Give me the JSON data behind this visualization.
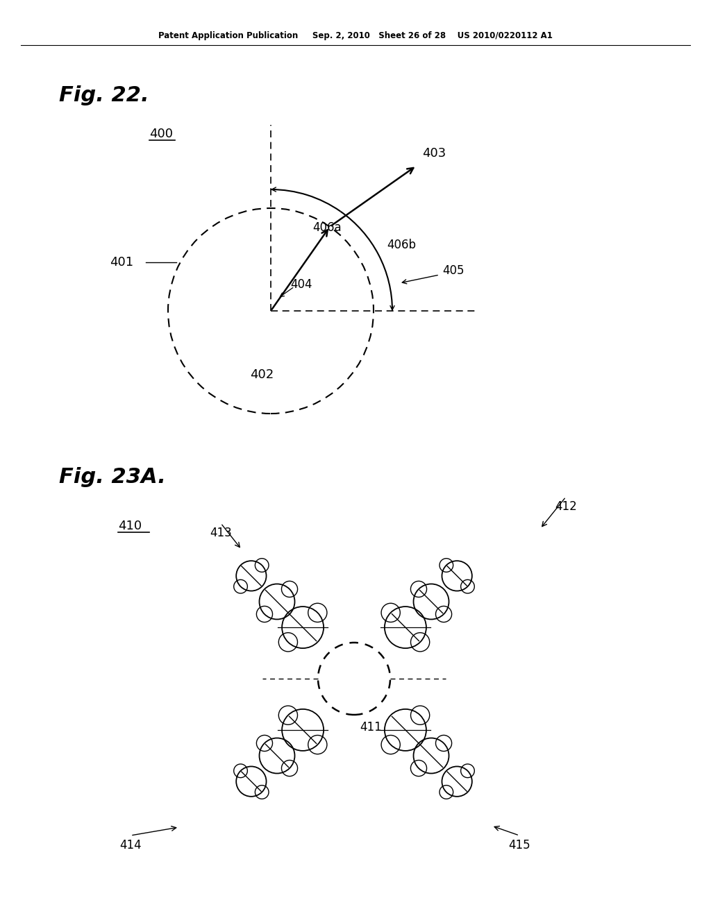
{
  "background_color": "#ffffff",
  "header_text": "Patent Application Publication     Sep. 2, 2010   Sheet 26 of 28    US 2010/0220112 A1",
  "fig22_label": "Fig. 22.",
  "fig23_label": "Fig. 23A.",
  "label_400": "400",
  "label_401": "401",
  "label_402": "402",
  "label_403": "403",
  "label_404": "404",
  "label_405": "405",
  "label_406a": "406a",
  "label_406b": "406b",
  "label_410": "410",
  "label_411": "411",
  "label_412": "412",
  "label_413": "413",
  "label_414": "414",
  "label_415": "415"
}
